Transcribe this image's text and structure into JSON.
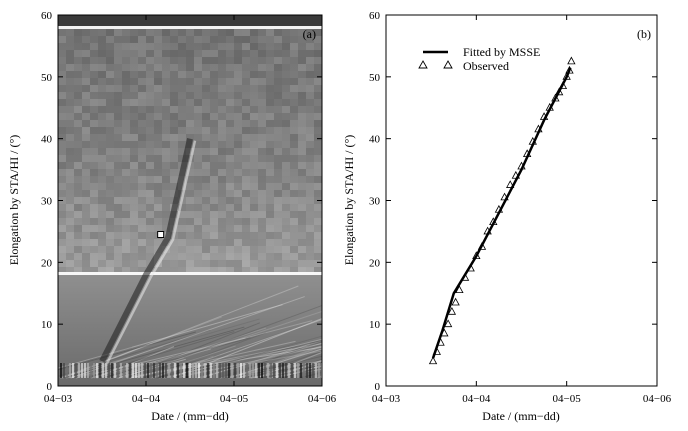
{
  "chart_data": [
    {
      "type": "heatmap",
      "panel_label": "(a)",
      "xlabel": "Date / (mm−dd)",
      "ylabel": "Elongation by STA/HI / (°)",
      "x_ticks": [
        "04−03",
        "04−04",
        "04−05",
        "04−06"
      ],
      "y_ticks": [
        "0",
        "10",
        "20",
        "30",
        "40",
        "50",
        "60"
      ],
      "xlim": [
        "04-03",
        "04-06"
      ],
      "ylim": [
        0,
        60
      ],
      "grid": false,
      "colormap": "grayscale",
      "features": {
        "hi1_hi2_boundary_elongation": 18,
        "top_band_elongation": 58,
        "bright_track": {
          "x": [
            "04-03 12:00",
            "04-04 00:00",
            "04-04 06:00",
            "04-04 12:00"
          ],
          "y": [
            4,
            18,
            24,
            40
          ]
        },
        "marked_point": {
          "x": "04-04 04:00",
          "y": 24.5
        }
      }
    },
    {
      "type": "scatter",
      "panel_label": "(b)",
      "xlabel": "Date / (mm−dd)",
      "ylabel": "Elongation by STA/HI / (°)",
      "x_ticks": [
        "04−03",
        "04−04",
        "04−05",
        "04−06"
      ],
      "y_ticks": [
        "0",
        "10",
        "20",
        "30",
        "40",
        "50",
        "60"
      ],
      "xlim": [
        "04-03",
        "04-06"
      ],
      "ylim": [
        0,
        60
      ],
      "grid": false,
      "legend": {
        "placement": "top-left",
        "entries": [
          "Fitted by MSSE",
          "Observed"
        ]
      },
      "series": [
        {
          "name": "Fitted by MSSE",
          "kind": "line",
          "x": [
            "04-03 12:30",
            "04-03 15:00",
            "04-03 18:00",
            "04-04 00:00",
            "04-04 06:00",
            "04-04 12:00",
            "04-04 18:00",
            "04-05 00:00",
            "04-05 01:00"
          ],
          "y": [
            4.5,
            9,
            15,
            21,
            28,
            35,
            43,
            50,
            51.5
          ]
        },
        {
          "name": "Observed",
          "kind": "marker",
          "marker": "triangle-open",
          "x": [
            "04-03 12:30",
            "04-03 13:30",
            "04-03 14:30",
            "04-03 15:30",
            "04-03 16:30",
            "04-03 17:30",
            "04-03 18:30",
            "04-03 19:30",
            "04-03 21:00",
            "04-03 22:30",
            "04-04 00:00",
            "04-04 01:30",
            "04-04 03:00",
            "04-04 04:30",
            "04-04 06:00",
            "04-04 07:30",
            "04-04 09:00",
            "04-04 10:30",
            "04-04 12:00",
            "04-04 13:30",
            "04-04 15:00",
            "04-04 16:30",
            "04-04 18:00",
            "04-04 19:30",
            "04-04 21:00",
            "04-04 22:00",
            "04-04 23:00",
            "04-05 00:00",
            "04-05 00:45",
            "04-05 01:15"
          ],
          "y": [
            4,
            5.5,
            7,
            8.5,
            10,
            12,
            13.5,
            15.5,
            17.5,
            19,
            21,
            22.5,
            25,
            26.5,
            28.5,
            30.5,
            32.5,
            34,
            35.5,
            37.5,
            39.5,
            41.5,
            43.5,
            45,
            46.5,
            47.5,
            48.5,
            50,
            51,
            52.5
          ]
        }
      ]
    }
  ]
}
